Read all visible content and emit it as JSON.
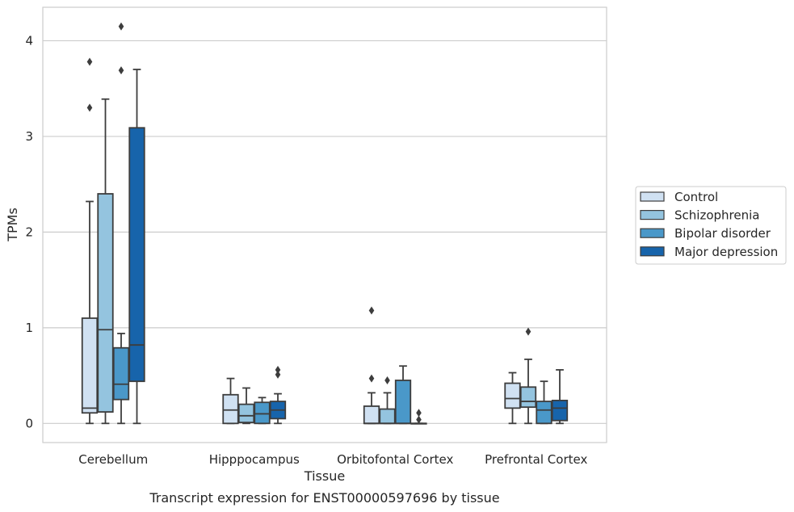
{
  "caption": "Transcript expression for ENST00000597696 by tissue",
  "chart_data": {
    "type": "box",
    "xlabel": "Tissue",
    "ylabel": "TPMs",
    "ylim": [
      -0.2,
      4.35
    ],
    "yticks": [
      0,
      1,
      2,
      3,
      4
    ],
    "grid": "horizontal",
    "legend_position": "right",
    "categories": [
      "Cerebellum",
      "Hipppocampus",
      "Orbitofontal Cortex",
      "Prefrontal Cortex"
    ],
    "series": [
      {
        "name": "Control",
        "color": "#d0e1f2",
        "boxes": [
          {
            "whislo": 0,
            "q1": 0.11,
            "med": 0.16,
            "q3": 1.1,
            "whishi": 2.32,
            "fliers": [
              3.3,
              3.78
            ]
          },
          {
            "whislo": 0,
            "q1": 0,
            "med": 0.14,
            "q3": 0.3,
            "whishi": 0.47,
            "fliers": []
          },
          {
            "whislo": 0,
            "q1": 0,
            "med": 0,
            "q3": 0.18,
            "whishi": 0.32,
            "fliers": [
              0.47,
              1.18
            ]
          },
          {
            "whislo": 0,
            "q1": 0.16,
            "med": 0.26,
            "q3": 0.42,
            "whishi": 0.53,
            "fliers": []
          }
        ]
      },
      {
        "name": "Schizophrenia",
        "color": "#94c4df",
        "boxes": [
          {
            "whislo": 0,
            "q1": 0.12,
            "med": 0.98,
            "q3": 2.4,
            "whishi": 3.39,
            "fliers": []
          },
          {
            "whislo": 0,
            "q1": 0.01,
            "med": 0.08,
            "q3": 0.2,
            "whishi": 0.37,
            "fliers": []
          },
          {
            "whislo": 0,
            "q1": 0,
            "med": 0,
            "q3": 0.15,
            "whishi": 0.32,
            "fliers": [
              0.45
            ]
          },
          {
            "whislo": 0,
            "q1": 0.17,
            "med": 0.23,
            "q3": 0.38,
            "whishi": 0.67,
            "fliers": [
              0.96
            ]
          }
        ]
      },
      {
        "name": "Bipolar disorder",
        "color": "#4a98c9",
        "boxes": [
          {
            "whislo": 0,
            "q1": 0.25,
            "med": 0.41,
            "q3": 0.79,
            "whishi": 0.94,
            "fliers": [
              3.69,
              4.15
            ]
          },
          {
            "whislo": 0,
            "q1": 0,
            "med": 0.1,
            "q3": 0.22,
            "whishi": 0.27,
            "fliers": []
          },
          {
            "whislo": 0,
            "q1": 0,
            "med": 0,
            "q3": 0.45,
            "whishi": 0.6,
            "fliers": []
          },
          {
            "whislo": 0,
            "q1": 0,
            "med": 0.14,
            "q3": 0.23,
            "whishi": 0.44,
            "fliers": []
          }
        ]
      },
      {
        "name": "Major depression",
        "color": "#1764ab",
        "boxes": [
          {
            "whislo": 0,
            "q1": 0.44,
            "med": 0.82,
            "q3": 3.09,
            "whishi": 3.7,
            "fliers": []
          },
          {
            "whislo": 0,
            "q1": 0.05,
            "med": 0.14,
            "q3": 0.23,
            "whishi": 0.31,
            "fliers": [
              0.51,
              0.56
            ]
          },
          {
            "whislo": 0,
            "q1": 0,
            "med": 0,
            "q3": 0,
            "whishi": 0,
            "fliers": [
              0.04,
              0.11
            ]
          },
          {
            "whislo": 0,
            "q1": 0.03,
            "med": 0.16,
            "q3": 0.24,
            "whishi": 0.56,
            "fliers": []
          }
        ]
      }
    ]
  }
}
